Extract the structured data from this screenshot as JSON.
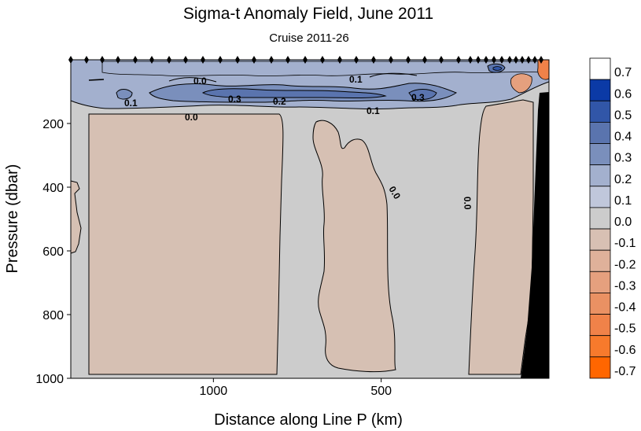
{
  "chart_data": {
    "type": "heatmap",
    "title": "Sigma-t Anomaly Field,  June 2011",
    "subtitle": "Cruise 2011-26",
    "xlabel": "Distance along Line P  (km)",
    "ylabel": "Pressure  (dbar)",
    "x_ticks": [
      "1000",
      "500"
    ],
    "x_tick_values": [
      1000,
      500
    ],
    "xlim": [
      1425,
      0
    ],
    "y_ticks": [
      "200",
      "400",
      "600",
      "800",
      "1000"
    ],
    "y_tick_values": [
      200,
      400,
      600,
      800,
      1000
    ],
    "ylim": [
      0,
      1000
    ],
    "y_reversed": true,
    "colorbar": {
      "labels": [
        "0.7",
        "0.6",
        "0.5",
        "0.4",
        "0.3",
        "0.2",
        "0.1",
        "0.0",
        "-0.1",
        "-0.2",
        "-0.3",
        "-0.4",
        "-0.5",
        "-0.6",
        "-0.7"
      ],
      "colors": [
        "#ffffff",
        "#0b3aa6",
        "#3156a8",
        "#5a74ae",
        "#7a8fbc",
        "#a3b0ce",
        "#c0c7db",
        "#cccccc",
        "#d8c0b3",
        "#dfb19a",
        "#e5a07e",
        "#ea9163",
        "#f08249",
        "#f77a2c",
        "#ff6600"
      ]
    },
    "contour_labels": [
      "0.0",
      "0.1",
      "0.1",
      "0.3",
      "0.2",
      "0.3",
      "0.1",
      "0.0",
      "0.0",
      "0.0"
    ],
    "colors": {
      "positive_anomaly": "#7a8fbc",
      "zero_band": "#cccccc",
      "negative_anomaly": "#d6c0b3",
      "bathymetry": "#000000"
    }
  }
}
